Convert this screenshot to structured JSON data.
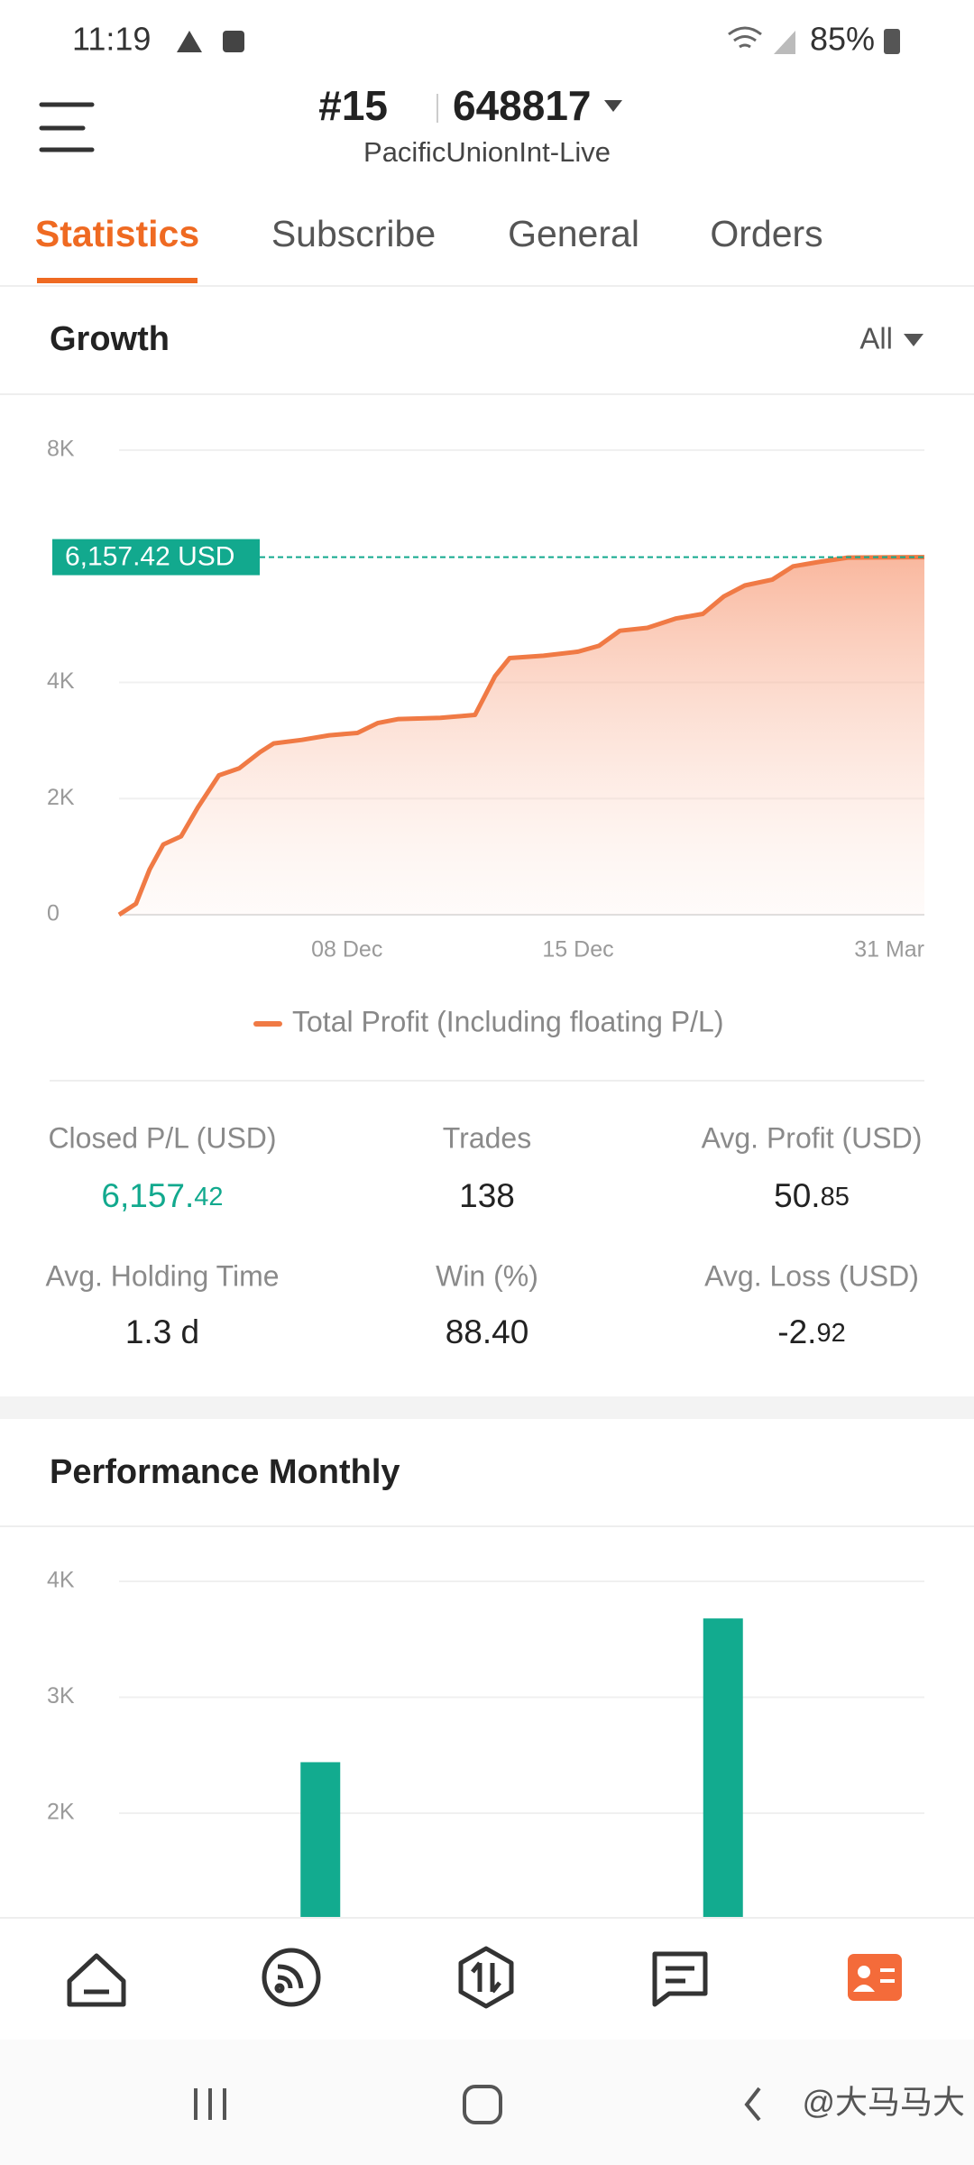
{
  "status_bar": {
    "time": "11:19",
    "battery": "85%"
  },
  "header": {
    "account_number": "#15",
    "account_id": "648817",
    "server": "PacificUnionInt-Live"
  },
  "tabs": [
    "Statistics",
    "Subscribe",
    "General",
    "Orders"
  ],
  "growth": {
    "title": "Growth",
    "filter": "All",
    "chart": {
      "type": "line",
      "current_label": "6,157.42 USD",
      "x": [
        0,
        2.1,
        3.8,
        5.5,
        7.7,
        9.8,
        12.4,
        14.9,
        17.5,
        19.2,
        22.7,
        26.1,
        29.6,
        32.1,
        34.7,
        39.9,
        44.2,
        46.7,
        48.5,
        52.7,
        57.0,
        59.6,
        62.2,
        65.6,
        69.1,
        72.5,
        75.1,
        77.7,
        81.1,
        83.7,
        87.1,
        90.5,
        100
      ],
      "series": [
        {
          "name": "Total Profit (Including floating P/L)",
          "color": "#f07a45",
          "values": [
            0,
            190,
            780,
            1210,
            1350,
            1850,
            2400,
            2520,
            2800,
            2950,
            3010,
            3090,
            3130,
            3300,
            3370,
            3390,
            3440,
            4110,
            4420,
            4460,
            4530,
            4630,
            4890,
            4940,
            5100,
            5180,
            5480,
            5670,
            5770,
            6000,
            6080,
            6150,
            6157.42
          ]
        }
      ],
      "xlim": [
        0,
        100
      ],
      "xticks": [
        {
          "value": 28.3,
          "label": "08 Dec"
        },
        {
          "value": 57,
          "label": "15 Dec"
        },
        {
          "value": 100,
          "label": "31 Mar"
        }
      ],
      "ylim": [
        0,
        8000
      ],
      "yticks": [
        0,
        {
          "value": 2000,
          "label": "2K"
        },
        {
          "value": 4000,
          "label": "4K"
        },
        {
          "value": 8000,
          "label": "8K"
        }
      ],
      "grid": true
    }
  },
  "stats": [
    {
      "label": "Closed P/L (USD)",
      "value": "6,157.",
      "decimals": "42"
    },
    {
      "label": "Trades",
      "value": "138"
    },
    {
      "label": "Avg. Profit (USD)",
      "value": "50.",
      "decimals": "85"
    },
    {
      "label": "Avg. Holding Time",
      "value": "1.3 d"
    },
    {
      "label": "Win (%)",
      "value": "88.40"
    },
    {
      "label": "Avg. Loss (USD)",
      "value": "-2.",
      "decimals": "92"
    }
  ],
  "performance": {
    "title": "Performance Monthly",
    "chart": {
      "type": "bar",
      "categories": [
        null,
        null
      ],
      "values": [
        2440,
        3680
      ],
      "color": "#12ab8f",
      "ylim": [
        0,
        4000
      ],
      "yticks": [
        {
          "value": 2000,
          "label": "2K"
        },
        {
          "value": 3000,
          "label": "3K"
        },
        {
          "value": 4000,
          "label": "4K"
        }
      ],
      "grid": true
    }
  },
  "watermark": "@大马马大"
}
